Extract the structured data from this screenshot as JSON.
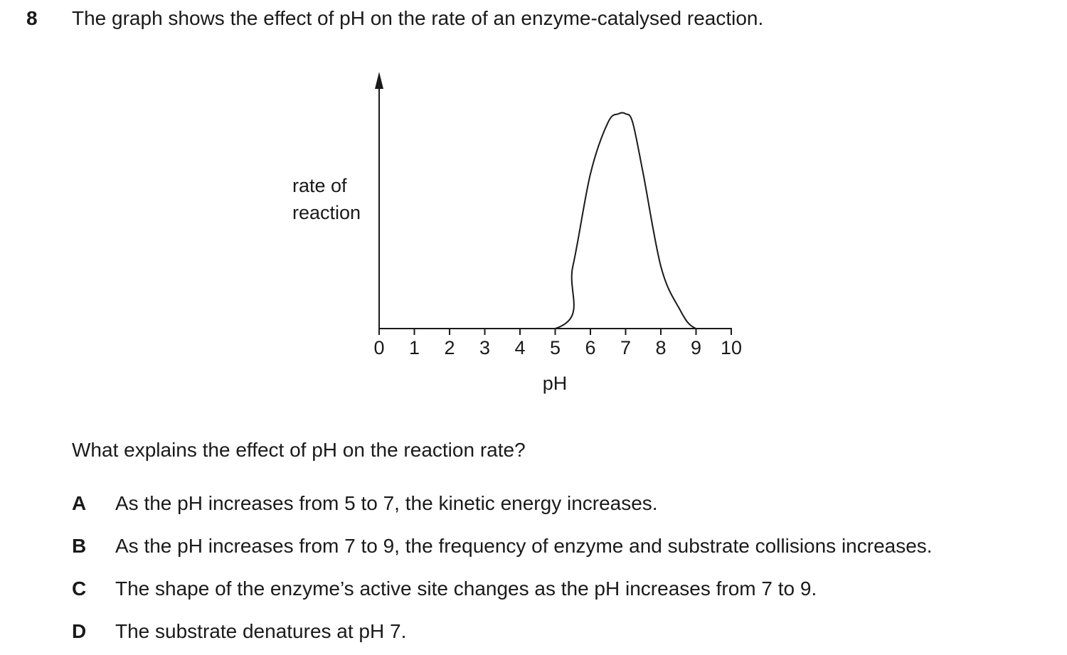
{
  "question": {
    "number": "8",
    "stem": "The graph shows the effect of pH on the rate of an enzyme-catalysed reaction.",
    "prompt": "What explains the effect of pH on the reaction rate?",
    "options": [
      {
        "letter": "A",
        "text": "As the pH increases from 5 to 7, the kinetic energy increases."
      },
      {
        "letter": "B",
        "text": "As the pH increases from 7 to 9, the frequency of enzyme and substrate collisions increases."
      },
      {
        "letter": "C",
        "text": "The shape of the enzyme’s active site changes as the pH increases from 7 to 9."
      },
      {
        "letter": "D",
        "text": "The substrate denatures at pH 7."
      }
    ]
  },
  "chart_data": {
    "type": "line",
    "title": "",
    "xlabel": "pH",
    "ylabel_lines": [
      "rate of",
      "reaction"
    ],
    "xlim": [
      0,
      10
    ],
    "ylim": [
      0,
      1
    ],
    "x_ticks": [
      0,
      1,
      2,
      3,
      4,
      5,
      6,
      7,
      8,
      9,
      10
    ],
    "x_tick_labels": [
      "0",
      "1",
      "2",
      "3",
      "4",
      "5",
      "6",
      "7",
      "8",
      "9",
      "10"
    ],
    "y_ticks": [],
    "grid": false,
    "series": [
      {
        "name": "rate of reaction",
        "x": [
          0,
          5,
          5.5,
          6,
          6.5,
          6.8,
          7,
          7.2,
          7.5,
          8,
          8.5,
          9,
          10
        ],
        "y": [
          0,
          0,
          0.29,
          0.72,
          0.96,
          1.0,
          1.0,
          0.96,
          0.72,
          0.29,
          0.1,
          0,
          0
        ]
      }
    ],
    "annotations": "peak rate at pH 7; rate is zero below pH 5 and above pH 9"
  }
}
